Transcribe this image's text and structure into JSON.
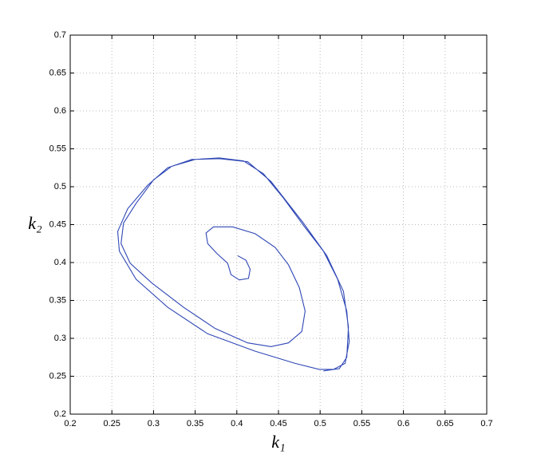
{
  "chart_data": {
    "type": "line",
    "x_label": "k₁",
    "y_label": "k₂",
    "xlim": [
      0.2,
      0.7
    ],
    "ylim": [
      0.2,
      0.7
    ],
    "xticks": [
      0.2,
      0.25,
      0.3,
      0.35,
      0.4,
      0.45,
      0.5,
      0.55,
      0.6,
      0.65,
      0.7
    ],
    "yticks": [
      0.2,
      0.25,
      0.3,
      0.35,
      0.4,
      0.45,
      0.5,
      0.55,
      0.6,
      0.65,
      0.7
    ],
    "grid": true,
    "series": [
      {
        "color": "#2f47b5",
        "x": [
          0.401,
          0.411,
          0.416,
          0.414,
          0.403,
          0.393,
          0.389,
          0.376,
          0.365,
          0.363,
          0.372,
          0.395,
          0.422,
          0.446,
          0.462,
          0.475,
          0.482,
          0.478,
          0.462,
          0.441,
          0.413,
          0.374,
          0.336,
          0.298,
          0.272,
          0.261,
          0.264,
          0.279,
          0.3,
          0.322,
          0.35,
          0.379,
          0.408,
          0.432,
          0.456,
          0.48,
          0.504,
          0.521,
          0.532,
          0.535,
          0.53,
          0.516,
          0.499,
          0.47,
          0.422,
          0.365,
          0.317,
          0.279,
          0.259,
          0.257,
          0.269,
          0.293,
          0.317,
          0.346,
          0.379,
          0.413,
          0.441,
          0.48,
          0.508,
          0.528,
          0.534,
          0.532,
          0.523,
          0.504
        ],
        "y": [
          0.409,
          0.403,
          0.391,
          0.379,
          0.377,
          0.384,
          0.399,
          0.412,
          0.425,
          0.439,
          0.447,
          0.447,
          0.438,
          0.42,
          0.397,
          0.367,
          0.336,
          0.309,
          0.294,
          0.289,
          0.294,
          0.313,
          0.341,
          0.373,
          0.399,
          0.425,
          0.452,
          0.478,
          0.509,
          0.527,
          0.536,
          0.538,
          0.534,
          0.517,
          0.485,
          0.449,
          0.415,
          0.378,
          0.336,
          0.296,
          0.267,
          0.259,
          0.259,
          0.267,
          0.283,
          0.306,
          0.341,
          0.378,
          0.415,
          0.441,
          0.471,
          0.502,
          0.525,
          0.536,
          0.537,
          0.533,
          0.507,
          0.452,
          0.409,
          0.362,
          0.315,
          0.275,
          0.26,
          0.257
        ]
      }
    ]
  }
}
